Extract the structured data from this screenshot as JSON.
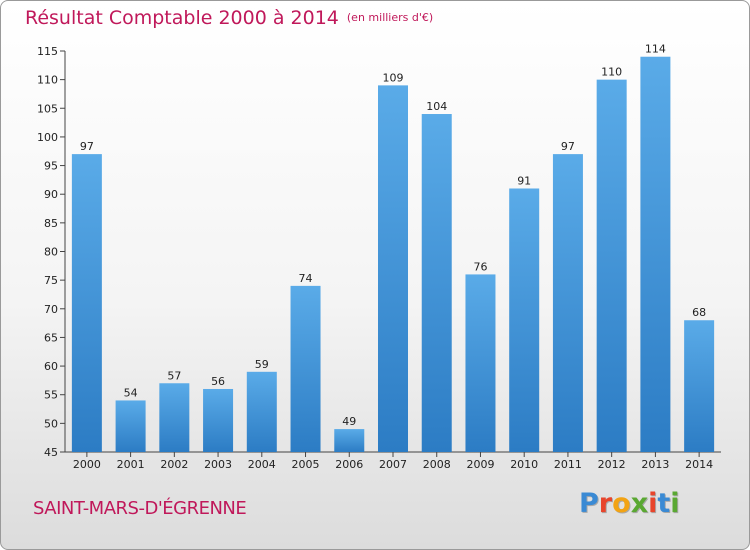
{
  "chart_data": {
    "type": "bar",
    "title": "Résultat Comptable 2000 à 2014",
    "subtitle": "(en milliers d'€)",
    "categories": [
      "2000",
      "2001",
      "2002",
      "2003",
      "2004",
      "2005",
      "2006",
      "2007",
      "2008",
      "2009",
      "2010",
      "2011",
      "2012",
      "2013",
      "2014"
    ],
    "values": [
      97,
      54,
      57,
      56,
      59,
      74,
      49,
      109,
      104,
      76,
      91,
      97,
      110,
      114,
      68
    ],
    "ylim": [
      45,
      115
    ],
    "yticks": [
      45,
      50,
      55,
      60,
      65,
      70,
      75,
      80,
      85,
      90,
      95,
      100,
      105,
      110,
      115
    ],
    "grid": false,
    "bar_color": "#3d8fd6",
    "legend": "none"
  },
  "footer": {
    "commune": "SAINT-MARS-D'ÉGRENNE",
    "logo_text": "Proxiti",
    "logo_colors": [
      "#3a8ad4",
      "#e8452c",
      "#f2a314",
      "#5aa832",
      "#e8452c",
      "#3a8ad4",
      "#5aa832"
    ]
  },
  "colors": {
    "title": "#c0185a"
  }
}
